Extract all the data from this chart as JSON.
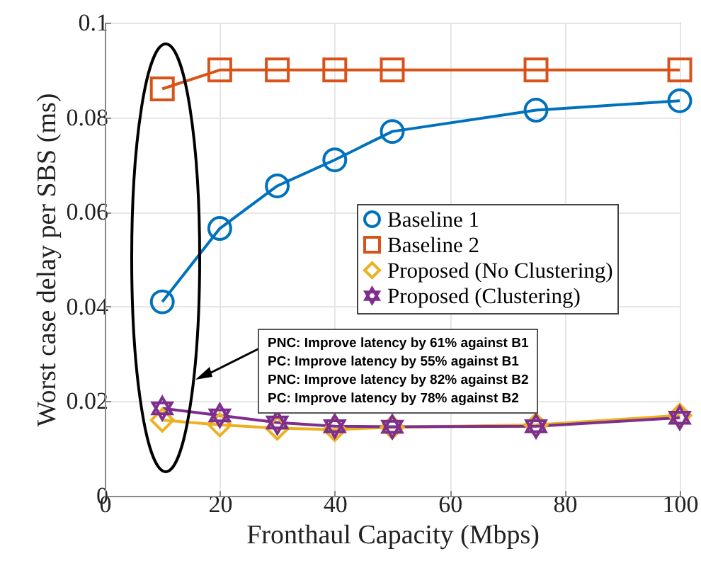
{
  "chart_data": {
    "type": "line",
    "xlabel": "Fronthaul Capacity (Mbps)",
    "ylabel": "Worst case delay per SBS (ms)",
    "x": [
      10,
      20,
      30,
      40,
      50,
      75,
      100
    ],
    "xlim": [
      0,
      100
    ],
    "xticks": [
      0,
      20,
      40,
      60,
      80,
      100
    ],
    "ylim": [
      0,
      0.1
    ],
    "yticks": [
      0,
      0.02,
      0.04,
      0.06,
      0.08,
      0.1
    ],
    "grid": true,
    "legend": "right",
    "series": [
      {
        "name": "Baseline 1",
        "color": "#0072bd",
        "marker": "circle",
        "values": [
          0.041,
          0.0565,
          0.0655,
          0.071,
          0.077,
          0.0815,
          0.0835
        ]
      },
      {
        "name": "Baseline 2",
        "color": "#d95319",
        "marker": "square",
        "values": [
          0.086,
          0.09,
          0.09,
          0.09,
          0.09,
          0.09,
          0.09
        ]
      },
      {
        "name": "Proposed (No Clustering)",
        "color": "#edb120",
        "marker": "diamond",
        "values": [
          0.016,
          0.015,
          0.0143,
          0.014,
          0.0145,
          0.015,
          0.017
        ]
      },
      {
        "name": "Proposed (Clustering)",
        "color": "#7e2f8e",
        "marker": "star",
        "values": [
          0.0185,
          0.017,
          0.0155,
          0.0147,
          0.0146,
          0.0147,
          0.0165
        ]
      }
    ],
    "annotations": [
      "PNC: Improve latency by 61% against B1",
      "PC: Improve latency by 55% against B1",
      "PNC: Improve latency by 82% against B2",
      "PC: Improve latency by 78% against B2"
    ]
  }
}
